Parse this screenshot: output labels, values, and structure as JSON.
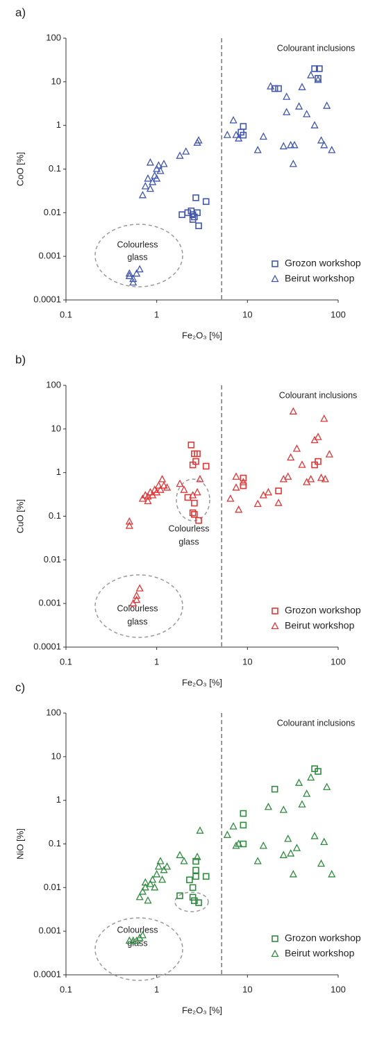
{
  "chart_data": [
    {
      "type": "scatter",
      "panel": "a)",
      "xlabel": "Fe₂O₃ [%]",
      "ylabel": "CoO [%]",
      "xlim": [
        0.1,
        100
      ],
      "ylim": [
        0.0001,
        100
      ],
      "xticks": [
        0.1,
        1,
        10,
        100
      ],
      "yticks": [
        0.0001,
        0.001,
        0.01,
        0.1,
        1,
        10,
        100
      ],
      "log_x": true,
      "log_y": true,
      "vline": 5.2,
      "legend": "lower right",
      "annotations": [
        "Colourant inclusions",
        "Colourless",
        "glass"
      ],
      "series": [
        {
          "name": "Grozon workshop",
          "marker": "square",
          "color": "#3f55b0",
          "x": [
            1.9,
            2.2,
            2.4,
            2.5,
            2.6,
            2.7,
            2.8,
            2.9,
            3.5,
            2.5,
            9,
            8.5,
            9,
            20,
            22,
            55,
            62,
            60
          ],
          "values": [
            0.009,
            0.01,
            0.011,
            0.009,
            0.008,
            0.022,
            0.01,
            0.005,
            0.018,
            0.007,
            0.95,
            0.7,
            0.6,
            7,
            7,
            20,
            20,
            12
          ]
        },
        {
          "name": "Beirut workshop",
          "marker": "triangle",
          "color": "#3f55b0",
          "x": [
            0.5,
            0.55,
            0.6,
            0.65,
            0.55,
            0.5,
            0.7,
            0.75,
            0.8,
            0.85,
            0.9,
            0.95,
            1.0,
            1.05,
            1.1,
            1.2,
            0.85,
            1.0,
            1.8,
            2.1,
            2.8,
            2.9,
            6,
            7,
            7.5,
            8,
            13,
            15,
            18,
            25,
            27,
            27,
            30,
            32,
            33,
            37,
            40,
            45,
            50,
            55,
            60,
            65,
            70,
            75,
            85
          ],
          "values": [
            0.0004,
            0.0003,
            0.0004,
            0.0005,
            0.00025,
            0.00035,
            0.025,
            0.04,
            0.06,
            0.14,
            0.05,
            0.07,
            0.1,
            0.12,
            0.09,
            0.13,
            0.035,
            0.06,
            0.2,
            0.25,
            0.4,
            0.45,
            0.6,
            1.3,
            0.6,
            0.5,
            0.27,
            0.55,
            7.8,
            0.33,
            4.5,
            2,
            0.35,
            0.13,
            0.35,
            2.7,
            7.5,
            1.8,
            14,
            1,
            11,
            0.45,
            0.35,
            2.8,
            0.27
          ]
        }
      ]
    },
    {
      "type": "scatter",
      "panel": "b)",
      "xlabel": "Fe₂O₃ [%]",
      "ylabel": "CuO [%]",
      "xlim": [
        0.1,
        100
      ],
      "ylim": [
        0.0001,
        100
      ],
      "xticks": [
        0.1,
        1,
        10,
        100
      ],
      "yticks": [
        0.0001,
        0.001,
        0.01,
        0.1,
        1,
        10,
        100
      ],
      "log_x": true,
      "log_y": true,
      "vline": 5.2,
      "legend": "lower right",
      "annotations": [
        "Colourant inclusions",
        "Colourless",
        "glass",
        "Colourless",
        "glass"
      ],
      "series": [
        {
          "name": "Grozon workshop",
          "marker": "square",
          "color": "#e03535",
          "x": [
            2.4,
            2.5,
            2.6,
            2.7,
            2.8,
            2.6,
            2.5,
            2.6,
            2.9,
            3.5,
            2.2,
            9,
            9,
            22,
            55,
            60
          ],
          "values": [
            4.3,
            1.5,
            2.7,
            1.8,
            2.7,
            0.2,
            0.12,
            0.11,
            0.08,
            1.4,
            0.27,
            0.75,
            0.5,
            0.38,
            1.5,
            1.8
          ]
        },
        {
          "name": "Beirut workshop",
          "marker": "triangle",
          "color": "#e03535",
          "x": [
            0.55,
            0.6,
            0.65,
            0.6,
            0.5,
            0.5,
            0.7,
            0.75,
            0.8,
            0.85,
            0.9,
            0.95,
            1.0,
            1.05,
            1.1,
            1.15,
            1.2,
            1.3,
            0.8,
            1.8,
            2.0,
            2.5,
            2.8,
            3.0,
            6.5,
            7.5,
            7.5,
            8,
            9,
            13,
            15,
            17,
            22,
            25,
            28,
            30,
            32,
            35,
            40,
            45,
            50,
            55,
            60,
            65,
            70,
            72,
            80
          ],
          "values": [
            0.001,
            0.0015,
            0.0022,
            0.0012,
            0.075,
            0.06,
            0.25,
            0.3,
            0.22,
            0.35,
            0.3,
            0.4,
            0.35,
            0.5,
            0.4,
            0.7,
            0.5,
            0.45,
            0.28,
            0.55,
            0.4,
            0.3,
            0.35,
            0.7,
            0.25,
            0.8,
            0.45,
            0.14,
            0.6,
            0.19,
            0.3,
            0.35,
            0.2,
            0.7,
            0.8,
            2.2,
            25,
            3.5,
            1.5,
            0.6,
            0.7,
            5.5,
            6.5,
            0.75,
            17,
            0.7,
            2.6
          ]
        }
      ]
    },
    {
      "type": "scatter",
      "panel": "c)",
      "xlabel": "Fe₂O₃ [%]",
      "ylabel": "NiO [%]",
      "xlim": [
        0.1,
        100
      ],
      "ylim": [
        0.0001,
        100
      ],
      "xticks": [
        0.1,
        1,
        10,
        100
      ],
      "yticks": [
        0.0001,
        0.001,
        0.01,
        0.1,
        1,
        10,
        100
      ],
      "log_x": true,
      "log_y": true,
      "vline": 5.2,
      "legend": "lower right",
      "annotations": [
        "Colourant inclusions",
        "Colourless",
        "glass"
      ],
      "series": [
        {
          "name": "Grozon workshop",
          "marker": "square",
          "color": "#2e8b3e",
          "x": [
            1.8,
            2.3,
            2.5,
            2.6,
            2.7,
            2.7,
            2.7,
            2.9,
            3.5,
            2.5,
            9,
            9,
            9,
            20,
            55,
            60
          ],
          "values": [
            0.0065,
            0.015,
            0.006,
            0.005,
            0.025,
            0.04,
            0.018,
            0.0045,
            0.018,
            0.01,
            0.5,
            0.27,
            0.1,
            1.8,
            5.3,
            4.6
          ]
        },
        {
          "name": "Beirut workshop",
          "marker": "triangle",
          "color": "#2e8b3e",
          "x": [
            0.5,
            0.55,
            0.6,
            0.65,
            0.7,
            0.65,
            0.7,
            0.75,
            0.8,
            0.85,
            0.9,
            0.95,
            1.0,
            1.05,
            1.1,
            1.15,
            1.2,
            1.3,
            0.75,
            1.8,
            2.0,
            2.8,
            3.0,
            6,
            7,
            7.5,
            8,
            13,
            15,
            17,
            25,
            25,
            28,
            30,
            32,
            35,
            37,
            40,
            45,
            50,
            55,
            65,
            70,
            75,
            85
          ],
          "values": [
            0.0006,
            0.0006,
            0.0006,
            0.0007,
            0.0008,
            0.006,
            0.008,
            0.01,
            0.005,
            0.012,
            0.015,
            0.01,
            0.02,
            0.03,
            0.04,
            0.015,
            0.025,
            0.03,
            0.013,
            0.055,
            0.04,
            0.05,
            0.2,
            0.16,
            0.25,
            0.09,
            0.1,
            0.04,
            0.09,
            0.7,
            0.6,
            0.055,
            0.13,
            0.06,
            0.02,
            0.08,
            2.5,
            0.8,
            1.4,
            3.3,
            0.15,
            0.035,
            0.11,
            2,
            0.02
          ]
        }
      ]
    }
  ]
}
